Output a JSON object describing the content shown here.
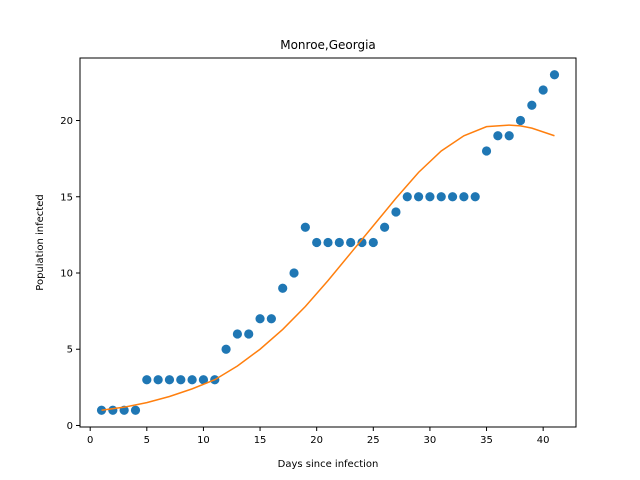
{
  "chart_data": {
    "type": "scatter",
    "title": "Monroe,Georgia",
    "xlabel": "Days since infection",
    "ylabel": "Population infected",
    "xlim": [
      -0.9,
      42.9
    ],
    "ylim": [
      -0.1,
      24.1
    ],
    "xticks": [
      0,
      5,
      10,
      15,
      20,
      25,
      30,
      35,
      40
    ],
    "yticks": [
      0,
      5,
      10,
      15,
      20
    ],
    "grid": false,
    "legend": "none",
    "series": [
      {
        "kind": "scatter",
        "color": "#1f77b4",
        "x": [
          1,
          2,
          3,
          4,
          5,
          6,
          7,
          8,
          9,
          10,
          11,
          12,
          13,
          14,
          15,
          16,
          17,
          18,
          19,
          20,
          21,
          22,
          23,
          24,
          25,
          26,
          27,
          28,
          29,
          30,
          31,
          32,
          33,
          34,
          35,
          36,
          37,
          38,
          39,
          40,
          41
        ],
        "y": [
          1,
          1,
          1,
          1,
          3,
          3,
          3,
          3,
          3,
          3,
          3,
          5,
          6,
          6,
          7,
          7,
          9,
          10,
          13,
          12,
          12,
          12,
          12,
          12,
          12,
          13,
          14,
          15,
          15,
          15,
          15,
          15,
          15,
          15,
          18,
          19,
          19,
          20,
          21,
          22,
          23
        ]
      },
      {
        "kind": "line",
        "color": "#ff7f0e",
        "x": [
          1,
          3,
          5,
          7,
          9,
          11,
          13,
          15,
          17,
          19,
          21,
          23,
          25,
          27,
          29,
          31,
          33,
          35,
          37,
          38,
          39,
          41
        ],
        "y": [
          1.0,
          1.2,
          1.5,
          1.9,
          2.4,
          3.0,
          3.9,
          5.0,
          6.3,
          7.8,
          9.5,
          11.3,
          13.1,
          14.9,
          16.6,
          18.0,
          19.0,
          19.6,
          19.7,
          19.65,
          19.5,
          19.0
        ]
      }
    ]
  }
}
